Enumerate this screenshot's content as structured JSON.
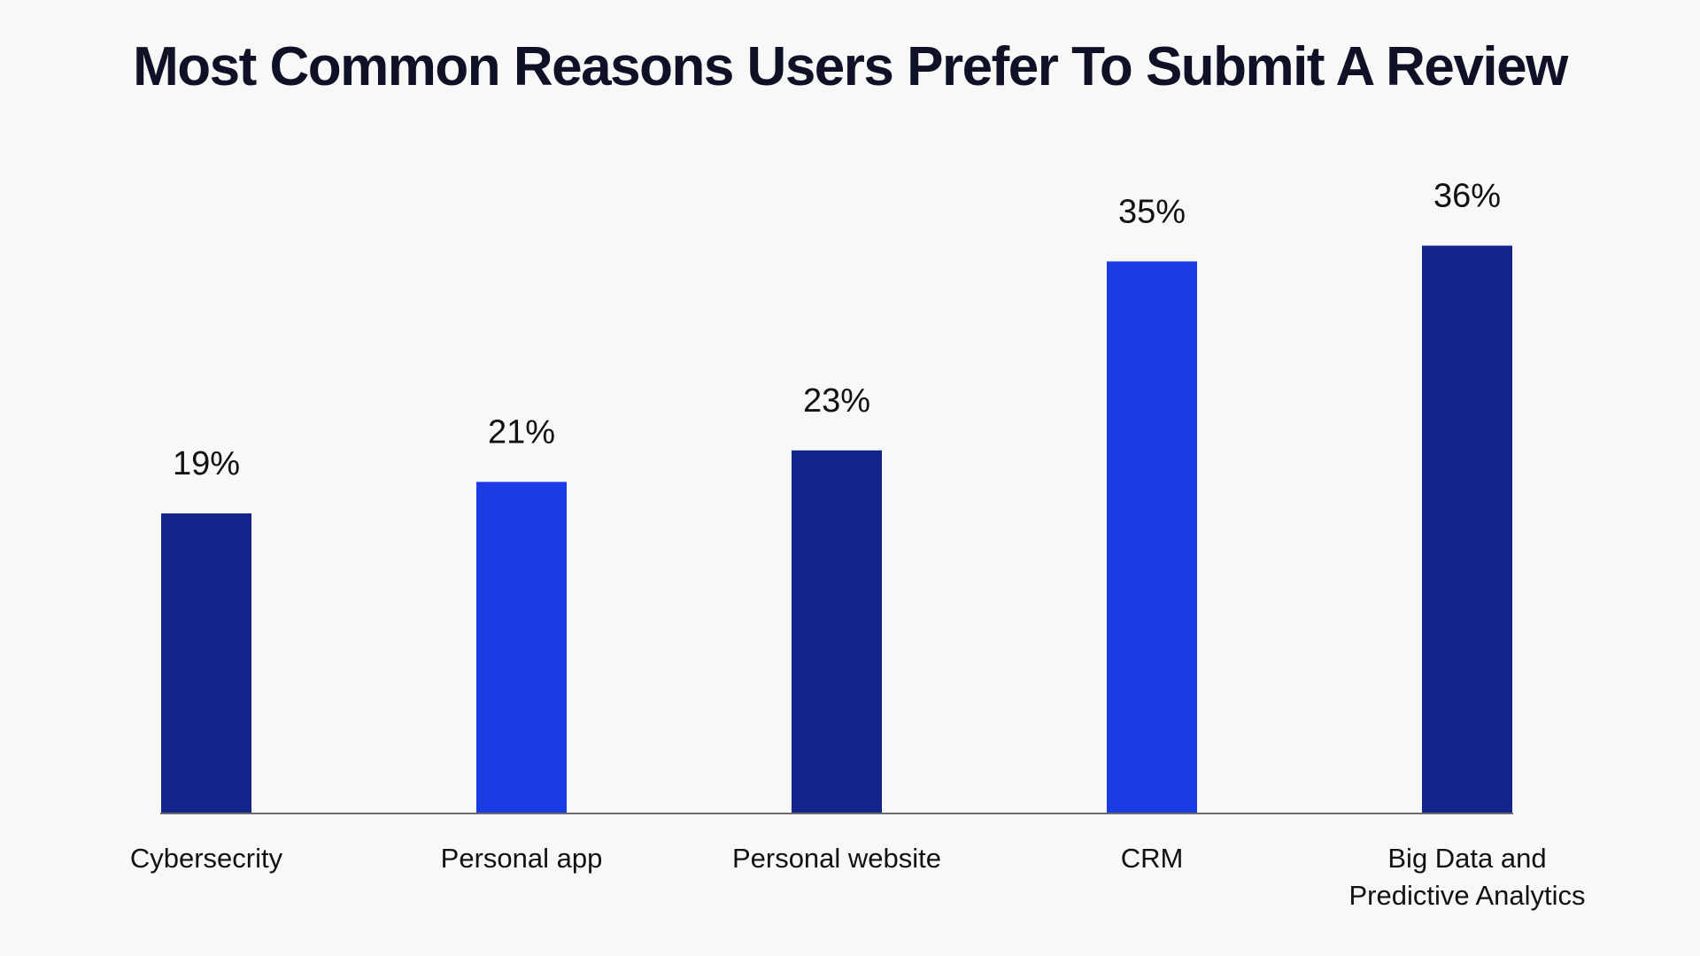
{
  "chart_data": {
    "type": "bar",
    "title": "Most Common Reasons Users Prefer To Submit A Review",
    "xlabel": "",
    "ylabel": "",
    "categories": [
      "Cybersecrity",
      "Personal app",
      "Personal website",
      "CRM",
      "Big Data and Predictive Analytics"
    ],
    "category_lines": [
      [
        "Cybersecrity"
      ],
      [
        "Personal app"
      ],
      [
        "Personal website"
      ],
      [
        "CRM"
      ],
      [
        "Big Data and",
        "Predictive Analytics"
      ]
    ],
    "values": [
      19,
      21,
      23,
      35,
      36
    ],
    "value_labels": [
      "19%",
      "21%",
      "23%",
      "35%",
      "36%"
    ],
    "unit": "%",
    "ylim": [
      0,
      43
    ],
    "grid": false,
    "legend": "none",
    "colors": [
      "#13258a",
      "#1c3ae6",
      "#13258a",
      "#1c3ae6",
      "#13258a"
    ],
    "axis_color": "#6b6b6b"
  }
}
